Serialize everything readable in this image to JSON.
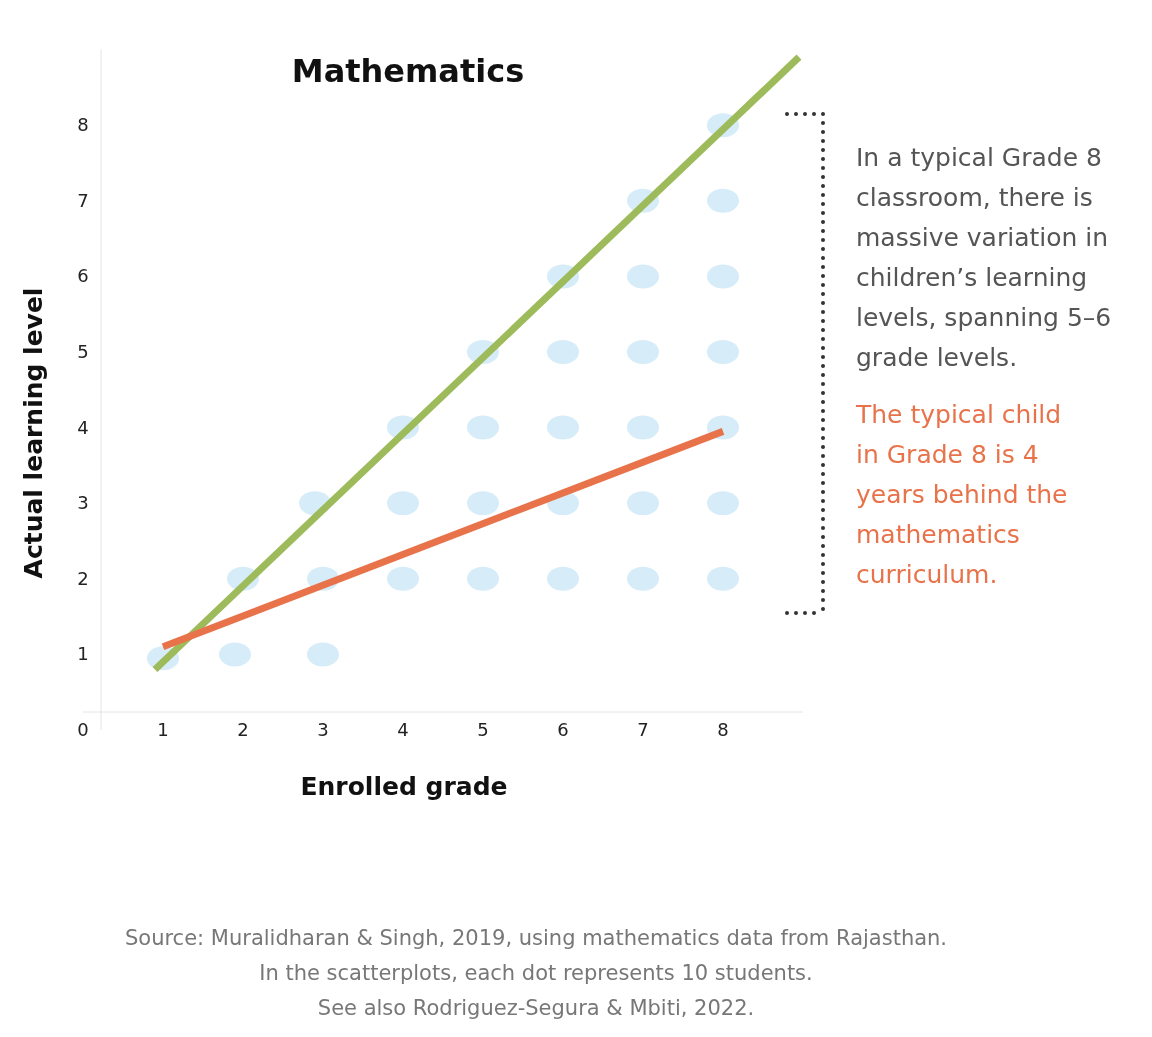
{
  "chart_data": {
    "type": "line",
    "title": "Mathematics",
    "xlabel": "Enrolled grade",
    "ylabel": "Actual learning level",
    "xlim": [
      0,
      9
    ],
    "ylim": [
      0,
      9
    ],
    "xticks": [
      1,
      2,
      3,
      4,
      5,
      6,
      7,
      8
    ],
    "yticks": [
      0,
      1,
      2,
      3,
      4,
      5,
      6,
      7,
      8
    ],
    "grid": false,
    "series": [
      {
        "type": "scatter",
        "marker": "circle",
        "color": "#d6ecf8",
        "x": [
          1,
          1.9,
          2,
          3,
          3,
          2.9,
          4,
          4,
          4,
          5,
          5,
          5,
          5,
          6,
          6,
          6,
          6,
          6,
          7,
          7,
          7,
          7,
          7,
          7,
          8,
          8,
          8,
          8,
          8,
          8,
          8
        ],
        "values": [
          0.95,
          1,
          2,
          1,
          2,
          3,
          2,
          3,
          4,
          2,
          3,
          4,
          5,
          2,
          3,
          4,
          5,
          6,
          2,
          3,
          4,
          5,
          6,
          7,
          2,
          3,
          4,
          5,
          6,
          7,
          8
        ]
      },
      {
        "color": "#9dbb5a",
        "x": [
          0.9,
          8.95
        ],
        "values": [
          0.8,
          8.9
        ]
      },
      {
        "color": "#e8734a",
        "x": [
          1,
          8
        ],
        "values": [
          1.1,
          3.95
        ]
      }
    ],
    "annotations": [
      "In a typical Grade 8 classroom, there is massive variation in children’s learning levels, spanning 5–6 grade levels.",
      "The typical child in Grade 8 is 4 years behind the mathematics curriculum.",
      "Source: Muralidharan & Singh, 2019, using mathematics data from Rajasthan.",
      "In the  scatterplots, each dot represents 10 students.",
      "See also Rodriguez-Segura & Mbiti, 2022."
    ]
  }
}
